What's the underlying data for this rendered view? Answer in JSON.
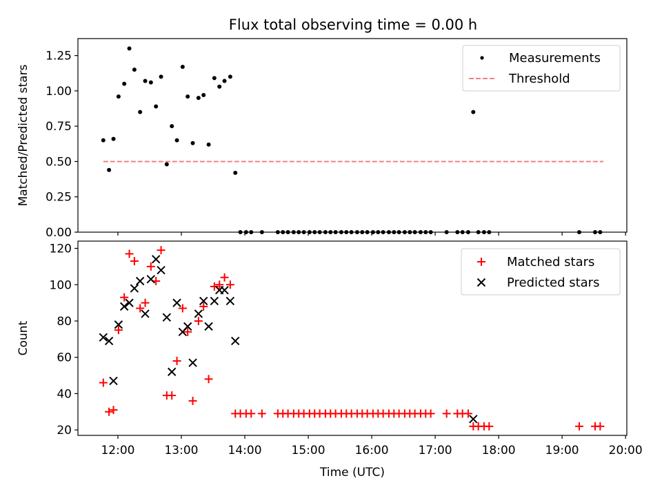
{
  "title": "Flux total observing time = 0.00 h",
  "chart_data": [
    {
      "type": "scatter",
      "ylabel": "Matched/Predicted stars",
      "xlabel": "",
      "xlim": [
        11.37,
        20.02
      ],
      "ylim": [
        0,
        1.37
      ],
      "yticks": [
        "0.00",
        "0.25",
        "0.50",
        "0.75",
        "1.00",
        "1.25"
      ],
      "legend": {
        "placement": "top-right",
        "items": [
          "Measurements",
          "Threshold"
        ]
      },
      "series": [
        {
          "name": "Measurements",
          "color": "#000000",
          "marker": "dot",
          "x": [
            11.77,
            11.86,
            11.93,
            12.01,
            12.1,
            12.18,
            12.26,
            12.35,
            12.43,
            12.52,
            12.6,
            12.68,
            12.77,
            12.85,
            12.93,
            13.02,
            13.1,
            13.18,
            13.27,
            13.35,
            13.43,
            13.52,
            13.6,
            13.68,
            13.77,
            13.85,
            13.93,
            14.02,
            14.1,
            14.27,
            14.52,
            14.6,
            14.68,
            14.77,
            14.85,
            14.93,
            15.02,
            15.1,
            15.18,
            15.27,
            15.35,
            15.43,
            15.52,
            15.6,
            15.68,
            15.77,
            15.85,
            15.93,
            16.02,
            16.1,
            16.18,
            16.27,
            16.35,
            16.43,
            16.52,
            16.6,
            16.68,
            16.77,
            16.85,
            16.93,
            17.18,
            17.35,
            17.43,
            17.52,
            17.6,
            17.68,
            17.77,
            17.85,
            19.27,
            19.52,
            19.6
          ],
          "y": [
            0.65,
            0.44,
            0.66,
            0.96,
            1.05,
            1.3,
            1.15,
            0.85,
            1.07,
            1.06,
            0.89,
            1.1,
            0.48,
            0.75,
            0.65,
            1.17,
            0.96,
            0.63,
            0.95,
            0.97,
            0.62,
            1.09,
            1.03,
            1.07,
            1.1,
            0.42,
            0,
            0,
            0,
            0,
            0,
            0,
            0,
            0,
            0,
            0,
            0,
            0,
            0,
            0,
            0,
            0,
            0,
            0,
            0,
            0,
            0,
            0,
            0,
            0,
            0,
            0,
            0,
            0,
            0,
            0,
            0,
            0,
            0,
            0,
            0,
            0,
            0,
            0,
            0.85,
            0,
            0,
            0,
            0,
            0,
            0
          ]
        },
        {
          "name": "Threshold",
          "color": "#f08080",
          "style": "dashed",
          "x": [
            11.77,
            19.65
          ],
          "y": [
            0.5,
            0.5
          ]
        }
      ]
    },
    {
      "type": "scatter",
      "ylabel": "Count",
      "xlabel": "Time (UTC)",
      "xlim": [
        11.37,
        20.02
      ],
      "ylim": [
        17,
        124
      ],
      "xticks": [
        "12:00",
        "13:00",
        "14:00",
        "15:00",
        "16:00",
        "17:00",
        "18:00",
        "19:00",
        "20:00"
      ],
      "yticks": [
        "20",
        "40",
        "60",
        "80",
        "100",
        "120"
      ],
      "legend": {
        "placement": "top-right",
        "items": [
          "Matched stars",
          "Predicted stars"
        ]
      },
      "series": [
        {
          "name": "Matched stars",
          "color": "#ff0000",
          "marker": "plus",
          "x": [
            11.77,
            11.86,
            11.93,
            12.01,
            12.1,
            12.18,
            12.26,
            12.35,
            12.43,
            12.52,
            12.6,
            12.68,
            12.77,
            12.85,
            12.93,
            13.02,
            13.1,
            13.18,
            13.27,
            13.35,
            13.43,
            13.52,
            13.6,
            13.68,
            13.77,
            13.85,
            13.93,
            14.02,
            14.1,
            14.27,
            14.52,
            14.6,
            14.68,
            14.77,
            14.85,
            14.93,
            15.02,
            15.1,
            15.18,
            15.27,
            15.35,
            15.43,
            15.52,
            15.6,
            15.68,
            15.77,
            15.85,
            15.93,
            16.02,
            16.1,
            16.18,
            16.27,
            16.35,
            16.43,
            16.52,
            16.6,
            16.68,
            16.77,
            16.85,
            16.93,
            17.18,
            17.35,
            17.43,
            17.52,
            17.6,
            17.68,
            17.77,
            17.85,
            19.27,
            19.52,
            19.6
          ],
          "y": [
            46,
            30,
            31,
            75,
            93,
            117,
            113,
            87,
            90,
            110,
            102,
            119,
            39,
            39,
            58,
            87,
            74,
            36,
            80,
            88,
            48,
            99,
            100,
            104,
            100,
            29,
            29,
            29,
            29,
            29,
            29,
            29,
            29,
            29,
            29,
            29,
            29,
            29,
            29,
            29,
            29,
            29,
            29,
            29,
            29,
            29,
            29,
            29,
            29,
            29,
            29,
            29,
            29,
            29,
            29,
            29,
            29,
            29,
            29,
            29,
            29,
            29,
            29,
            29,
            22,
            22,
            22,
            22,
            22,
            22,
            22
          ]
        },
        {
          "name": "Predicted stars",
          "color": "#000000",
          "marker": "x",
          "x": [
            11.77,
            11.86,
            11.93,
            12.01,
            12.1,
            12.18,
            12.26,
            12.35,
            12.43,
            12.52,
            12.6,
            12.68,
            12.77,
            12.85,
            12.93,
            13.02,
            13.1,
            13.18,
            13.27,
            13.35,
            13.43,
            13.52,
            13.6,
            13.68,
            13.77,
            13.85,
            17.6
          ],
          "y": [
            71,
            69,
            47,
            78,
            88,
            90,
            98,
            102,
            84,
            103,
            114,
            108,
            82,
            52,
            90,
            74,
            77,
            57,
            84,
            91,
            77,
            91,
            97,
            97,
            91,
            69,
            26
          ]
        }
      ]
    }
  ]
}
